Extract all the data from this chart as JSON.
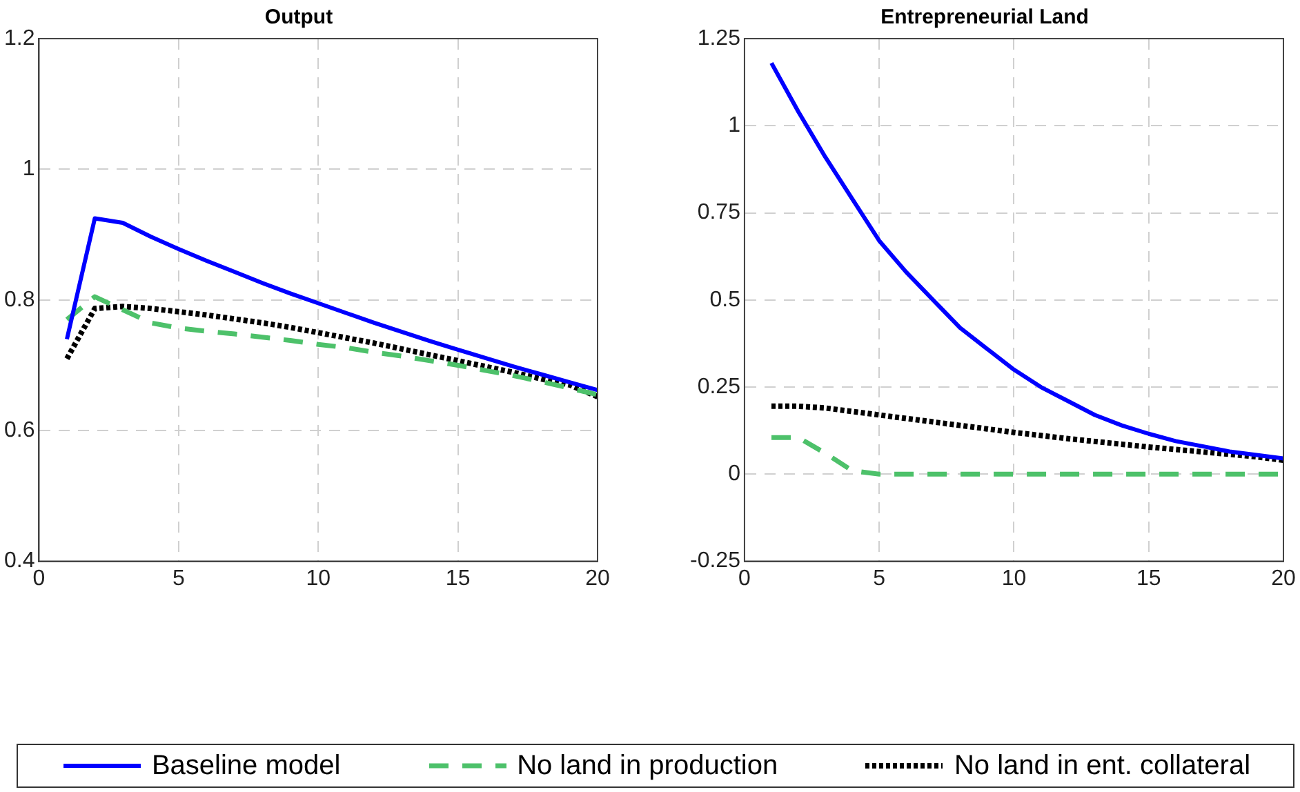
{
  "chart_data": [
    {
      "type": "line",
      "title": "Output",
      "x": [
        1,
        2,
        3,
        4,
        5,
        6,
        7,
        8,
        9,
        10,
        11,
        12,
        13,
        14,
        15,
        16,
        17,
        18,
        19,
        20
      ],
      "xlim": [
        0,
        20
      ],
      "xticks": [
        0,
        5,
        10,
        15,
        20
      ],
      "ylim": [
        0.4,
        1.2
      ],
      "yticks": [
        0.4,
        0.6,
        0.8,
        1,
        1.2
      ],
      "grid": true,
      "legend": "bottom",
      "marker": "none",
      "series": [
        {
          "name": "Baseline model",
          "color": "#0000ff",
          "line_style": "solid",
          "values": [
            0.74,
            0.925,
            0.918,
            0.897,
            0.878,
            0.86,
            0.843,
            0.826,
            0.81,
            0.795,
            0.78,
            0.765,
            0.751,
            0.737,
            0.724,
            0.711,
            0.698,
            0.686,
            0.674,
            0.662
          ]
        },
        {
          "name": "No land in production",
          "color": "#4dc16a",
          "line_style": "dashed",
          "values": [
            0.77,
            0.805,
            0.785,
            0.765,
            0.757,
            0.752,
            0.748,
            0.743,
            0.738,
            0.732,
            0.727,
            0.72,
            0.714,
            0.707,
            0.7,
            0.692,
            0.684,
            0.675,
            0.665,
            0.655
          ]
        },
        {
          "name": "No land in ent. collateral",
          "color": "#000000",
          "line_style": "dotted",
          "values": [
            0.71,
            0.787,
            0.79,
            0.787,
            0.782,
            0.777,
            0.771,
            0.765,
            0.758,
            0.75,
            0.742,
            0.734,
            0.725,
            0.716,
            0.707,
            0.698,
            0.689,
            0.679,
            0.67,
            0.652
          ]
        }
      ]
    },
    {
      "type": "line",
      "title": "Entrepreneurial Land",
      "x": [
        1,
        2,
        3,
        4,
        5,
        6,
        7,
        8,
        9,
        10,
        11,
        12,
        13,
        14,
        15,
        16,
        17,
        18,
        19,
        20
      ],
      "xlim": [
        0,
        20
      ],
      "xticks": [
        0,
        5,
        10,
        15,
        20
      ],
      "ylim": [
        -0.25,
        1.25
      ],
      "yticks": [
        -0.25,
        0,
        0.25,
        0.5,
        0.75,
        1,
        1.25
      ],
      "grid": true,
      "legend": "bottom",
      "marker": "none",
      "series": [
        {
          "name": "Baseline model",
          "color": "#0000ff",
          "line_style": "solid",
          "values": [
            1.18,
            1.04,
            0.91,
            0.79,
            0.67,
            0.58,
            0.5,
            0.42,
            0.36,
            0.3,
            0.25,
            0.21,
            0.17,
            0.14,
            0.116,
            0.095,
            0.08,
            0.065,
            0.055,
            0.045
          ]
        },
        {
          "name": "No land in production",
          "color": "#4dc16a",
          "line_style": "dashed",
          "values": [
            0.105,
            0.105,
            0.06,
            0.01,
            0,
            0,
            0,
            0,
            0,
            0,
            0,
            0,
            0,
            0,
            0,
            0,
            0,
            0,
            0,
            0
          ]
        },
        {
          "name": "No land in ent. collateral",
          "color": "#000000",
          "line_style": "dotted",
          "values": [
            0.195,
            0.195,
            0.19,
            0.18,
            0.17,
            0.16,
            0.15,
            0.14,
            0.13,
            0.12,
            0.111,
            0.102,
            0.094,
            0.086,
            0.078,
            0.071,
            0.064,
            0.057,
            0.05,
            0.04
          ]
        }
      ]
    }
  ]
}
